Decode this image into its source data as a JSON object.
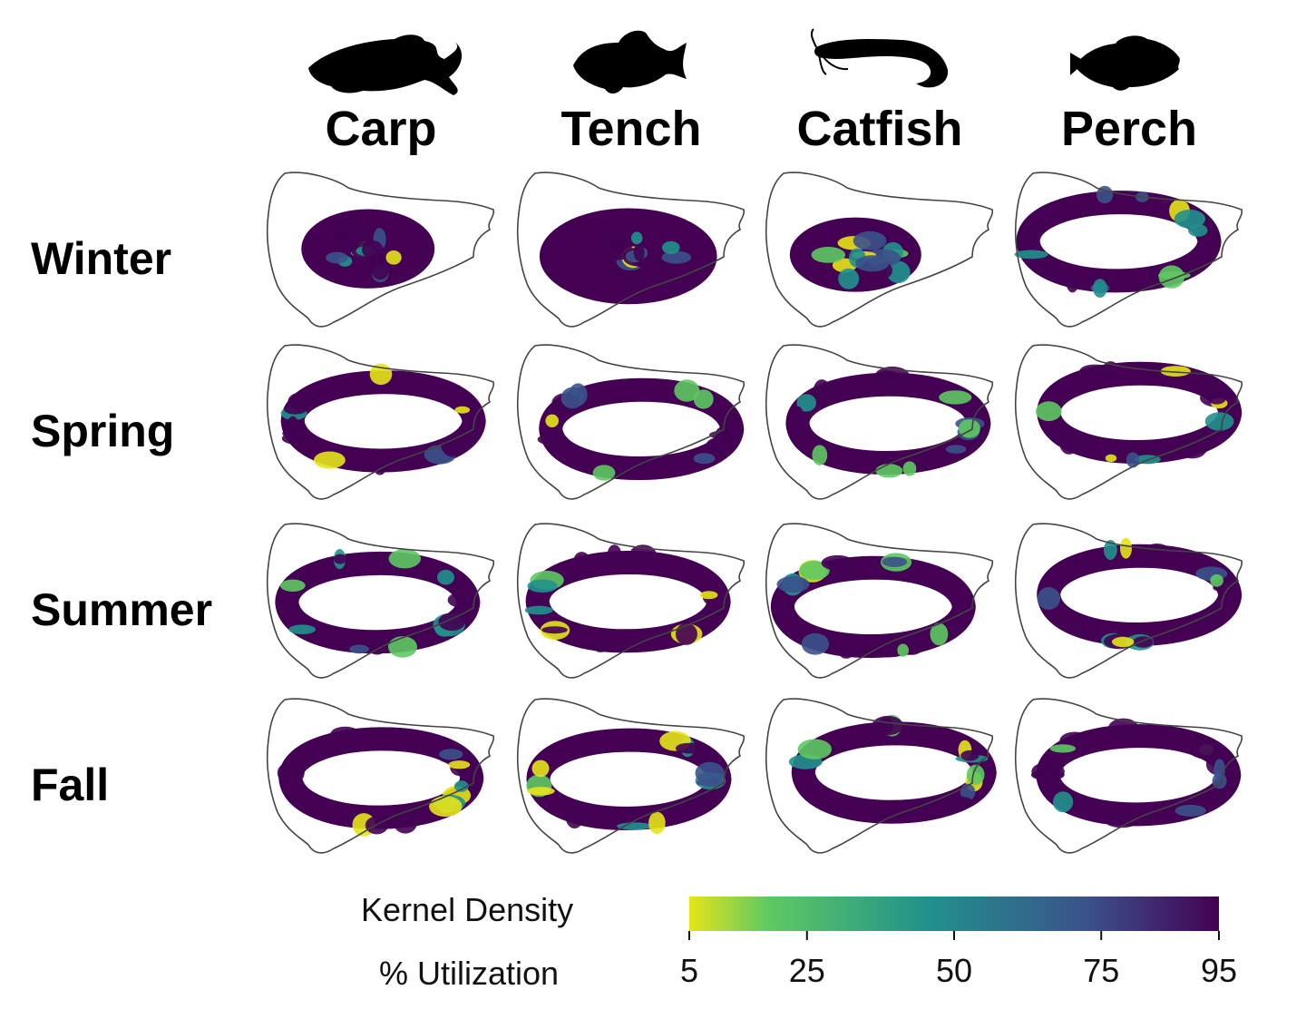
{
  "species": [
    {
      "name": "Carp",
      "icon": "carp-silhouette-icon"
    },
    {
      "name": "Tench",
      "icon": "tench-silhouette-icon"
    },
    {
      "name": "Catfish",
      "icon": "catfish-silhouette-icon"
    },
    {
      "name": "Perch",
      "icon": "perch-silhouette-icon"
    }
  ],
  "seasons": [
    "Winter",
    "Spring",
    "Summer",
    "Fall"
  ],
  "legend": {
    "line1": "Kernel Density",
    "line2": "% Utilization",
    "ticks": [
      5,
      25,
      50,
      75,
      95
    ],
    "colors": [
      "#e5e419",
      "#5ec962",
      "#21918c",
      "#3b528b",
      "#440154"
    ]
  },
  "palette": {
    "low": "#440154",
    "mid_low": "#3b528b",
    "mid": "#21918c",
    "mid_high": "#5ec962",
    "high": "#e5e419",
    "outline": "#444444"
  }
}
